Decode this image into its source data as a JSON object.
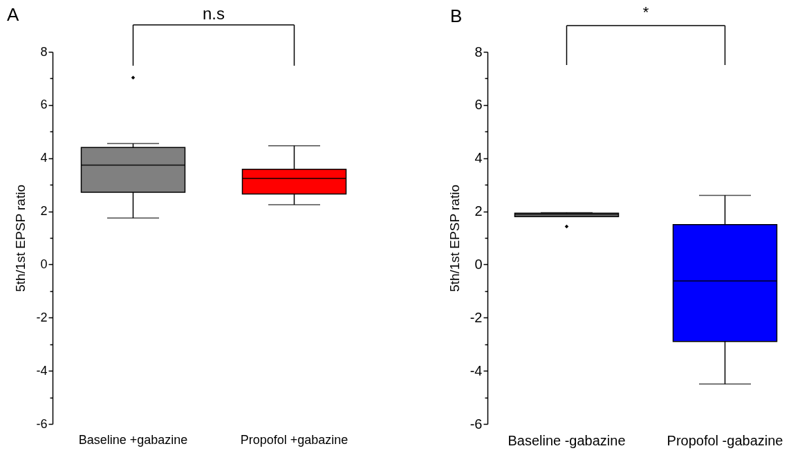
{
  "chart_data": [
    {
      "type": "box",
      "title": "A",
      "ylabel": "5th/1st EPSP ratio",
      "categories": [
        "Baseline +gabazine",
        "Propofol +gabazine"
      ],
      "colors": [
        "#808080",
        "#ff0000"
      ],
      "marker": "diamond",
      "grid": false,
      "boxes": [
        {
          "low": 1.75,
          "q1": 2.72,
          "median": 3.74,
          "q3": 4.4,
          "high": 4.55,
          "outliers": [
            7.03
          ]
        },
        {
          "low": 2.25,
          "q1": 2.65,
          "median": 3.24,
          "q3": 3.58,
          "high": 4.47
        }
      ],
      "ylim": [
        -6,
        8
      ],
      "yticks": [
        -6,
        {
          "value": -5,
          "label": null
        },
        -4,
        {
          "value": -3,
          "label": null
        },
        -2,
        {
          "value": -1,
          "label": null
        },
        0,
        {
          "value": 1,
          "label": null
        },
        2,
        {
          "value": 3,
          "label": null
        },
        4,
        {
          "value": 5,
          "label": null
        },
        6,
        {
          "value": 7,
          "label": null
        },
        8
      ],
      "annotations": [
        "n.s"
      ]
    },
    {
      "type": "box",
      "title": "B",
      "ylabel": "5th/1st EPSP ratio",
      "categories": [
        "Baseline -gabazine",
        "Propofol -gabazine"
      ],
      "colors": [
        "#808080",
        "#0000ff"
      ],
      "marker": "diamond",
      "grid": false,
      "boxes": [
        {
          "low": 1.8,
          "q1": 1.8,
          "median": 1.88,
          "q3": 1.93,
          "high": 1.95,
          "outliers": [
            1.43
          ]
        },
        {
          "low": -4.5,
          "q1": -2.9,
          "median": -0.62,
          "q3": 1.5,
          "high": 2.6
        }
      ],
      "ylim": [
        -6,
        8
      ],
      "yticks": [
        -6,
        {
          "value": -5,
          "label": null
        },
        -4,
        {
          "value": -3,
          "label": null
        },
        -2,
        {
          "value": -1,
          "label": null
        },
        0,
        {
          "value": 1,
          "label": null
        },
        2,
        {
          "value": 3,
          "label": null
        },
        4,
        {
          "value": 5,
          "label": null
        },
        6,
        {
          "value": 7,
          "label": null
        },
        8
      ],
      "annotations": [
        "*"
      ]
    }
  ]
}
